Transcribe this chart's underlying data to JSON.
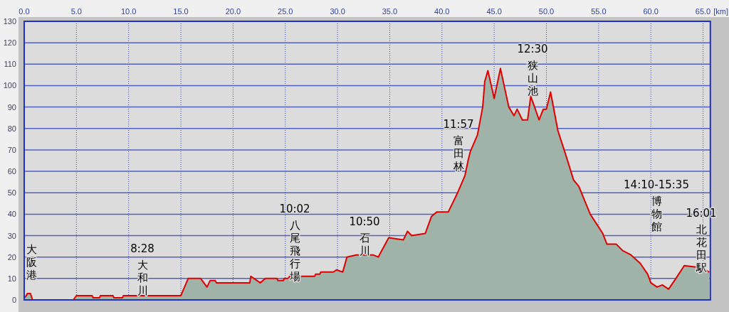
{
  "chart_data": {
    "type": "area",
    "color": "#e00000",
    "grid": true,
    "xlabel": "[km]",
    "xlim": [
      0,
      65.7
    ],
    "ylim": [
      0,
      130
    ],
    "xticks": [
      {
        "value": 0,
        "label": "0.0"
      },
      {
        "value": 5,
        "label": "5.0"
      },
      {
        "value": 10,
        "label": "10.0"
      },
      {
        "value": 15,
        "label": "15.0"
      },
      {
        "value": 20,
        "label": "20.0"
      },
      {
        "value": 25,
        "label": "25.0"
      },
      {
        "value": 30,
        "label": "30.0"
      },
      {
        "value": 35,
        "label": "35.0"
      },
      {
        "value": 40,
        "label": "40.0"
      },
      {
        "value": 45,
        "label": "45.0"
      },
      {
        "value": 50,
        "label": "50.0"
      },
      {
        "value": 55,
        "label": "55.0"
      },
      {
        "value": 60,
        "label": "60.0"
      },
      {
        "value": 65,
        "label": "65.0"
      }
    ],
    "yticks": [
      0,
      10,
      20,
      30,
      40,
      50,
      60,
      70,
      80,
      90,
      100,
      110,
      120,
      130
    ],
    "x": [
      0,
      0.2,
      0.3,
      0.6,
      0.8,
      4.7,
      5.0,
      6.5,
      6.6,
      7.2,
      7.3,
      8.5,
      8.6,
      9.4,
      9.5,
      15.0,
      15.7,
      16.9,
      17.5,
      17.8,
      18.3,
      18.4,
      21.6,
      21.7,
      22.6,
      23.1,
      24.2,
      24.3,
      24.8,
      24.9,
      25.3,
      25.4,
      27.8,
      27.9,
      28.3,
      28.4,
      29.6,
      29.9,
      30.5,
      30.9,
      31.8,
      33.4,
      33.9,
      34.9,
      36.3,
      36.7,
      37.1,
      38.4,
      39.0,
      39.5,
      40.6,
      41.5,
      42.2,
      42.5,
      42.7,
      43.4,
      43.9,
      44.1,
      44.4,
      45.0,
      45.6,
      46.4,
      46.9,
      47.2,
      47.7,
      48.2,
      48.5,
      48.8,
      49.3,
      49.7,
      50.0,
      50.4,
      51.1,
      51.3,
      51.9,
      52.6,
      53.1,
      54.2,
      55.4,
      55.8,
      56.7,
      57.3,
      58.1,
      59.0,
      59.7,
      60.0,
      60.6,
      61.1,
      61.7,
      62.4,
      63.2,
      64.9,
      65.2,
      65.6
    ],
    "values": [
      1,
      2,
      3,
      3,
      0,
      0,
      2,
      2,
      1,
      1,
      2,
      2,
      1,
      1,
      2,
      2,
      10,
      10,
      6,
      9,
      9,
      8,
      8,
      11,
      8,
      10,
      10,
      9,
      9,
      10,
      10,
      11,
      11,
      12,
      12,
      13,
      13,
      14,
      13,
      20,
      21,
      21,
      20,
      29,
      28,
      32,
      30,
      31,
      39,
      41,
      41,
      50,
      58,
      65,
      69,
      77,
      90,
      102,
      107,
      94,
      108,
      90,
      86,
      89,
      84,
      84,
      95,
      91,
      84,
      89,
      89,
      97,
      79,
      76,
      67,
      56,
      53,
      40,
      31,
      26,
      26,
      23,
      21,
      17,
      12,
      8,
      6,
      7,
      5,
      10,
      16,
      15,
      14,
      13
    ],
    "annotations": [
      "大阪港",
      "8:28\n大和川",
      "10:02\n八尾飛行場",
      "10:50\n石川",
      "11:57\n富田林",
      "12:30\n狭山池",
      "14:10-15:35\n博物館",
      "16:01\n北花田駅"
    ]
  }
}
